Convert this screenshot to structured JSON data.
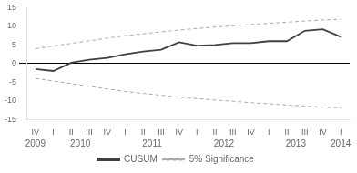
{
  "chart_data": {
    "type": "line",
    "categories": [
      "IV",
      "I",
      "II",
      "III",
      "IV",
      "I",
      "II",
      "III",
      "IV",
      "I",
      "II",
      "III",
      "IV",
      "I",
      "II",
      "III",
      "IV",
      "I"
    ],
    "series": [
      {
        "name": "CUSUM",
        "color": "#404040",
        "line_style": "solid",
        "values": [
          -1.5,
          -2.0,
          0.2,
          1.0,
          1.5,
          2.5,
          3.2,
          3.7,
          5.7,
          4.8,
          5.0,
          5.5,
          5.5,
          6.0,
          6.0,
          8.8,
          9.2,
          7.2
        ]
      },
      {
        "name": "5% Significance",
        "color": "#aaaaaa",
        "line_style": "dashed",
        "values": [
          4.0,
          4.7,
          5.4,
          6.1,
          6.8,
          7.5,
          8.0,
          8.5,
          9.0,
          9.4,
          9.8,
          10.1,
          10.5,
          10.8,
          11.1,
          11.4,
          11.7,
          11.9
        ]
      },
      {
        "name": "5% Significance",
        "color": "#aaaaaa",
        "line_style": "dashed",
        "values": [
          -4.0,
          -4.7,
          -5.4,
          -6.1,
          -6.8,
          -7.5,
          -8.0,
          -8.5,
          -9.0,
          -9.4,
          -9.8,
          -10.1,
          -10.5,
          -10.8,
          -11.1,
          -11.4,
          -11.7,
          -11.9
        ]
      }
    ],
    "ylim": [
      -15,
      15
    ],
    "yticks": [
      -15,
      -10,
      -5,
      0,
      5,
      10,
      15
    ],
    "x2ticks": [
      {
        "value": 0,
        "label": "2009"
      },
      {
        "value": 2.5,
        "label": "2010"
      },
      {
        "value": 6.5,
        "label": "2011"
      },
      {
        "value": 10.5,
        "label": "2012"
      },
      {
        "value": 14.5,
        "label": "2013"
      },
      {
        "value": 17,
        "label": "2014"
      }
    ],
    "reference_lines": [
      {
        "value": 0,
        "color": "#000000"
      }
    ],
    "grid": false,
    "legend": "bottom"
  }
}
